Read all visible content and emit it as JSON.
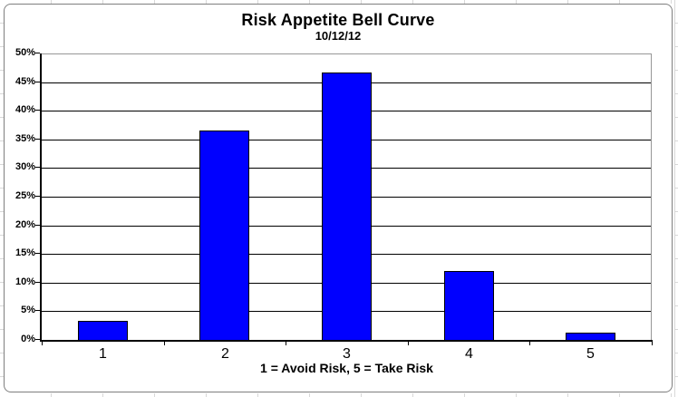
{
  "chart_data": {
    "type": "bar",
    "title": "Risk Appetite Bell Curve",
    "subtitle": "10/12/12",
    "xlabel": "1 = Avoid Risk, 5 = Take Risk",
    "ylabel": "",
    "categories": [
      "1",
      "2",
      "3",
      "4",
      "5"
    ],
    "values": [
      3.4,
      36.6,
      46.6,
      12.1,
      1.3
    ],
    "ylim": [
      0,
      50
    ],
    "ytick_step": 5,
    "ytick_labels": [
      "0%",
      "5%",
      "10%",
      "15%",
      "20%",
      "25%",
      "30%",
      "35%",
      "40%",
      "45%",
      "50%"
    ],
    "grid": true,
    "legend": "none",
    "colors": {
      "bar_fill": "#0000FF",
      "bar_border": "#000000",
      "gridline": "#000000",
      "plot_border": "#969696",
      "axis": "#000000",
      "frame_border": "#7F7F7F",
      "sheet_grid": "#D8D8D8",
      "background": "#FFFFFF",
      "text": "#000000"
    }
  }
}
